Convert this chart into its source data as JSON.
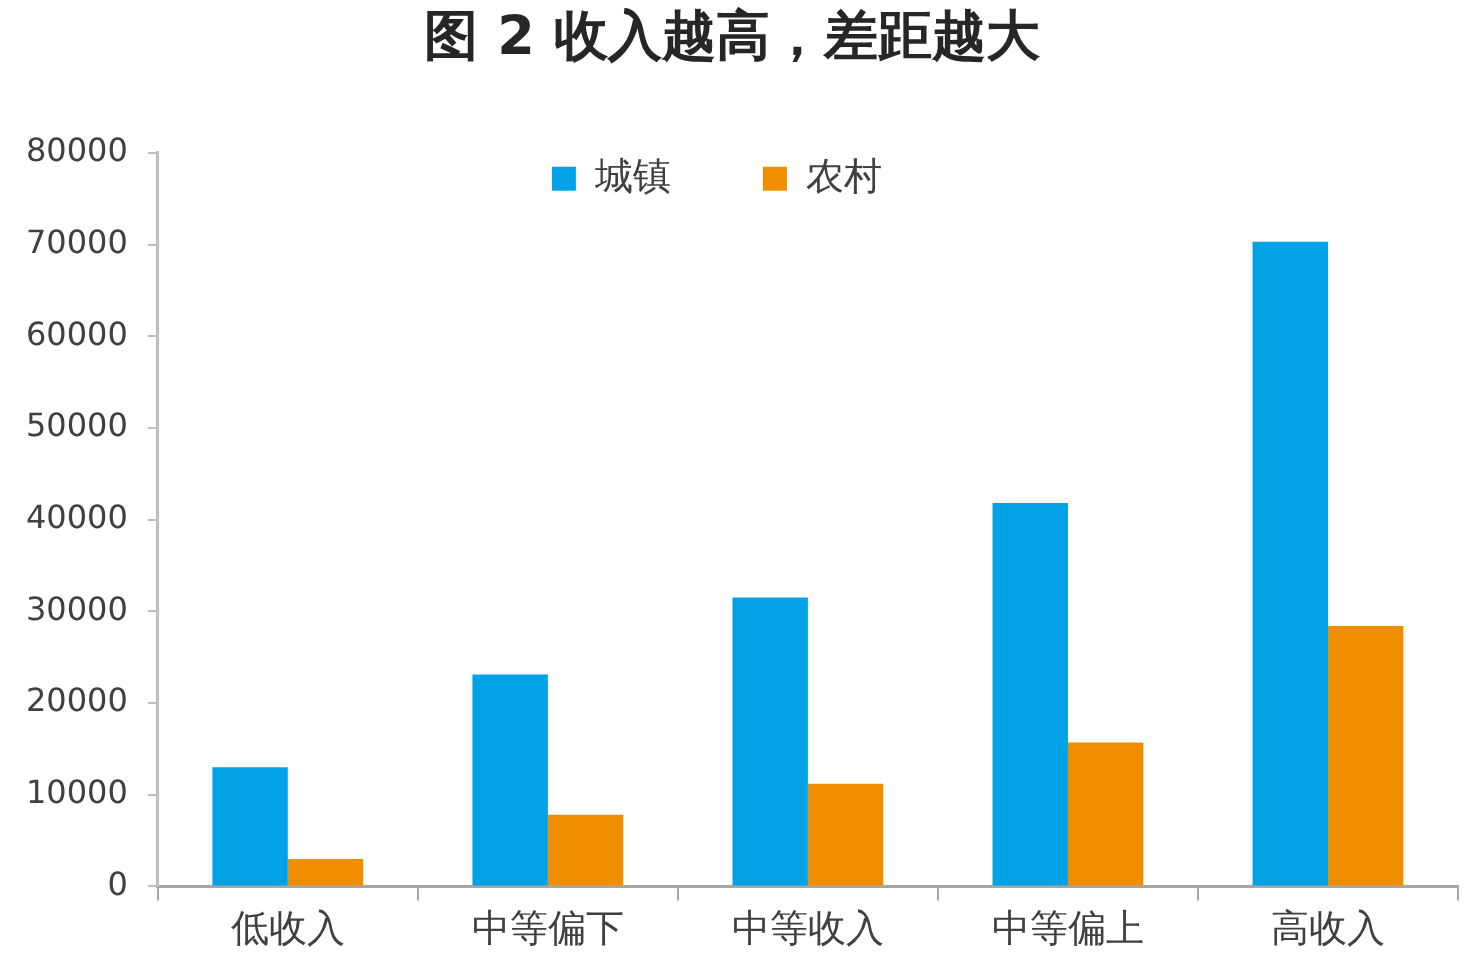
{
  "chart_data": {
    "type": "bar",
    "title": "图 2 收入越高，差距越大",
    "categories": [
      "低收入",
      "中等偏下",
      "中等收入",
      "中等偏上",
      "高收入"
    ],
    "series": [
      {
        "name": "城镇",
        "color": "#00a2e6",
        "values": [
          13000,
          23100,
          31500,
          41800,
          70300
        ]
      },
      {
        "name": "农村",
        "color": "#f08e00",
        "values": [
          3000,
          7800,
          11200,
          15700,
          28400
        ]
      }
    ],
    "ylim": [
      0,
      80000
    ],
    "yticks": [
      0,
      10000,
      20000,
      30000,
      40000,
      50000,
      60000,
      70000,
      80000
    ],
    "legend": "top"
  }
}
